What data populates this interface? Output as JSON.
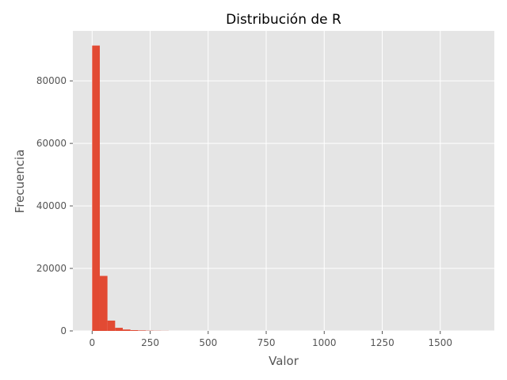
{
  "chart_data": {
    "type": "bar",
    "title": "Distribución de R",
    "xlabel": "Valor",
    "ylabel": "Frecuencia",
    "xlim": [
      -83,
      1733
    ],
    "ylim": [
      0,
      96000
    ],
    "x_ticks": [
      0,
      250,
      500,
      750,
      1000,
      1250,
      1500
    ],
    "x_tick_labels": [
      "0",
      "250",
      "500",
      "750",
      "1000",
      "1250",
      "1500"
    ],
    "y_ticks": [
      0,
      20000,
      40000,
      60000,
      80000
    ],
    "y_tick_labels": [
      "0",
      "20000",
      "40000",
      "60000",
      "80000"
    ],
    "bin_width": 33,
    "bins": [
      {
        "start": 0,
        "end": 33,
        "value": 91300
      },
      {
        "start": 33,
        "end": 66,
        "value": 17600
      },
      {
        "start": 66,
        "end": 99,
        "value": 3300
      },
      {
        "start": 99,
        "end": 132,
        "value": 1000
      },
      {
        "start": 132,
        "end": 165,
        "value": 450
      },
      {
        "start": 165,
        "end": 198,
        "value": 250
      },
      {
        "start": 198,
        "end": 231,
        "value": 150
      },
      {
        "start": 231,
        "end": 264,
        "value": 80
      },
      {
        "start": 264,
        "end": 297,
        "value": 50
      },
      {
        "start": 297,
        "end": 330,
        "value": 30
      }
    ],
    "grid": true,
    "legend": false,
    "colors": {
      "bar": "#e24a33",
      "plot_background": "#e5e5e5",
      "grid": "#ffffff",
      "text": "#555555"
    }
  }
}
